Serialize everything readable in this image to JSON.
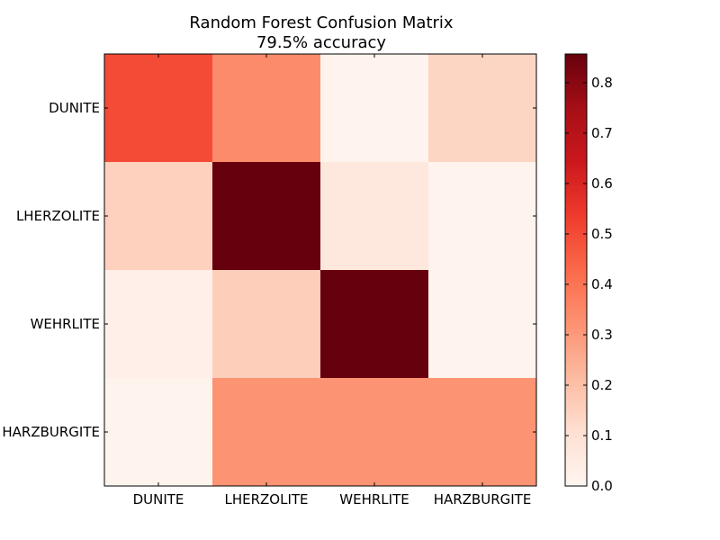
{
  "chart_data": {
    "type": "heatmap",
    "title": "Random Forest Confusion Matrix",
    "subtitle": "79.5% accuracy",
    "row_labels": [
      "DUNITE",
      "LHERZOLITE",
      "WEHRLITE",
      "HARZBURGITE"
    ],
    "column_labels": [
      "DUNITE",
      "LHERZOLITE",
      "WEHRLITE",
      "HARZBURGITE"
    ],
    "values": [
      [
        0.5,
        0.34,
        0.01,
        0.14
      ],
      [
        0.15,
        0.86,
        0.07,
        0.01
      ],
      [
        0.03,
        0.16,
        0.86,
        0.01
      ],
      [
        0.01,
        0.32,
        0.32,
        0.32
      ]
    ],
    "colormap": "Reds",
    "colorbar": {
      "range": [
        0.0,
        0.857
      ],
      "ticks": [
        "0.0",
        "0.1",
        "0.2",
        "0.3",
        "0.4",
        "0.5",
        "0.6",
        "0.7",
        "0.8"
      ]
    },
    "grid": false
  }
}
